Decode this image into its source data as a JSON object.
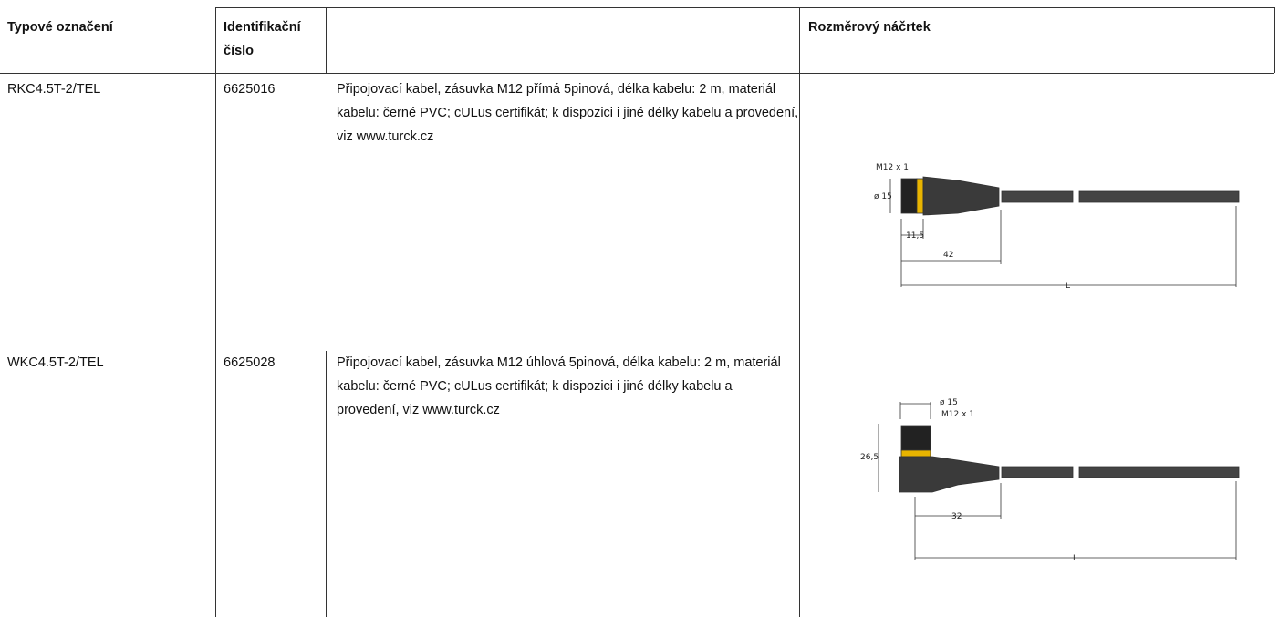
{
  "table": {
    "header": {
      "type": "Typové označení",
      "id": "Identifikační číslo",
      "drawing": "Rozměrový náčrtek"
    },
    "rows": [
      {
        "type": "RKC4.5T-2/TEL",
        "id": "6625016",
        "description": "Připojovací kabel, zásuvka M12 přímá 5pinová, délka kabelu: 2 m, materiál kabelu: černé PVC; cULus certifikát; k dispozici i jiné délky kabelu a provedení, viz www.turck.cz",
        "drawing": {
          "thread": "M12 x 1",
          "diameter": "ø 15",
          "nut_length": "11,5",
          "length": "42",
          "cable": "L"
        }
      },
      {
        "type": "WKC4.5T-2/TEL",
        "id": "6625028",
        "description": "Připojovací kabel, zásuvka M12 úhlová 5pinová, délka kabelu: 2 m, materiál kabelu: černé PVC; cULus certifikát; k dispozici i jiné délky kabelu a provedení, viz www.turck.cz",
        "drawing": {
          "diameter": "ø 15",
          "thread": "M12 x 1",
          "height": "26,5",
          "length": "32",
          "cable": "L"
        }
      }
    ]
  }
}
